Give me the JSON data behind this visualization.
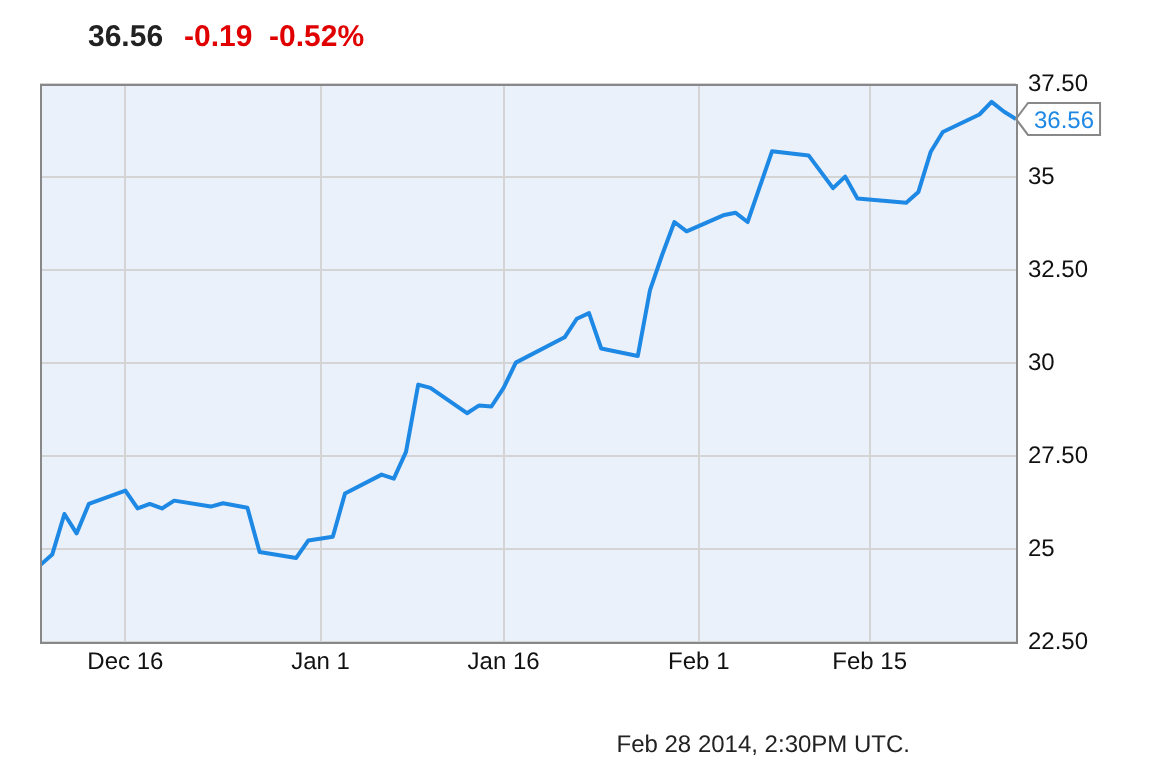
{
  "chart_data": {
    "type": "line",
    "title": "36.56",
    "subtitle": "-0.19  -0.52%",
    "x": [
      "2013-12-09",
      "2013-12-10",
      "2013-12-11",
      "2013-12-12",
      "2013-12-13",
      "2013-12-16",
      "2013-12-17",
      "2013-12-18",
      "2013-12-19",
      "2013-12-20",
      "2013-12-23",
      "2013-12-24",
      "2013-12-26",
      "2013-12-27",
      "2013-12-30",
      "2013-12-31",
      "2014-01-02",
      "2014-01-03",
      "2014-01-06",
      "2014-01-07",
      "2014-01-08",
      "2014-01-09",
      "2014-01-10",
      "2014-01-13",
      "2014-01-14",
      "2014-01-15",
      "2014-01-16",
      "2014-01-17",
      "2014-01-21",
      "2014-01-22",
      "2014-01-23",
      "2014-01-24",
      "2014-01-27",
      "2014-01-28",
      "2014-01-29",
      "2014-01-30",
      "2014-01-31",
      "2014-02-03",
      "2014-02-04",
      "2014-02-05",
      "2014-02-06",
      "2014-02-07",
      "2014-02-10",
      "2014-02-12",
      "2014-02-13",
      "2014-02-14",
      "2014-02-18",
      "2014-02-19",
      "2014-02-20",
      "2014-02-21",
      "2014-02-24",
      "2014-02-25",
      "2014-02-26",
      "2014-02-27"
    ],
    "series": [
      {
        "color": "#1e88e5",
        "values": [
          24.56,
          24.85,
          25.94,
          25.42,
          26.21,
          26.57,
          26.09,
          26.21,
          26.09,
          26.3,
          26.14,
          26.23,
          26.11,
          24.92,
          24.76,
          25.23,
          25.33,
          26.49,
          27.0,
          26.89,
          27.61,
          29.42,
          29.33,
          28.65,
          28.86,
          28.83,
          29.33,
          30.01,
          30.69,
          31.19,
          31.34,
          30.39,
          30.19,
          31.96,
          32.91,
          33.79,
          33.54,
          33.97,
          34.04,
          33.79,
          34.74,
          35.69,
          35.58,
          34.7,
          35.01,
          34.42,
          34.31,
          34.6,
          35.67,
          36.21,
          36.68,
          37.02,
          36.76,
          36.56
        ],
        "value_labels": [
          null,
          null,
          null,
          null,
          null,
          null,
          null,
          null,
          null,
          null,
          null,
          null,
          null,
          null,
          null,
          null,
          null,
          null,
          null,
          null,
          null,
          null,
          null,
          null,
          null,
          null,
          null,
          null,
          null,
          null,
          null,
          null,
          null,
          null,
          null,
          null,
          null,
          null,
          null,
          null,
          null,
          null,
          null,
          null,
          null,
          null,
          null,
          null,
          null,
          null,
          null,
          null,
          null,
          "36.56"
        ]
      }
    ],
    "xlim": [
      "2013-12-09",
      "2014-02-27"
    ],
    "xticks": [
      {
        "value": "2013-12-16",
        "label": "Dec 16"
      },
      {
        "value": "2014-01-01",
        "label": "Jan 1"
      },
      {
        "value": "2014-01-16",
        "label": "Jan 16"
      },
      {
        "value": "2014-02-01",
        "label": "Feb 1"
      },
      {
        "value": "2014-02-15",
        "label": "Feb 15"
      }
    ],
    "ylim": [
      22.5,
      37.5
    ],
    "yticks": [
      {
        "value": 22.5,
        "label": "22.50"
      },
      25,
      {
        "value": 27.5,
        "label": "27.50"
      },
      30,
      {
        "value": 32.5,
        "label": "32.50"
      },
      35,
      {
        "value": 37.5,
        "label": "37.50"
      }
    ],
    "grid": true,
    "legend": false,
    "marker": "none",
    "line_style": "solid",
    "annotations": [
      "Feb 28 2014, 2:30PM UTC."
    ]
  }
}
